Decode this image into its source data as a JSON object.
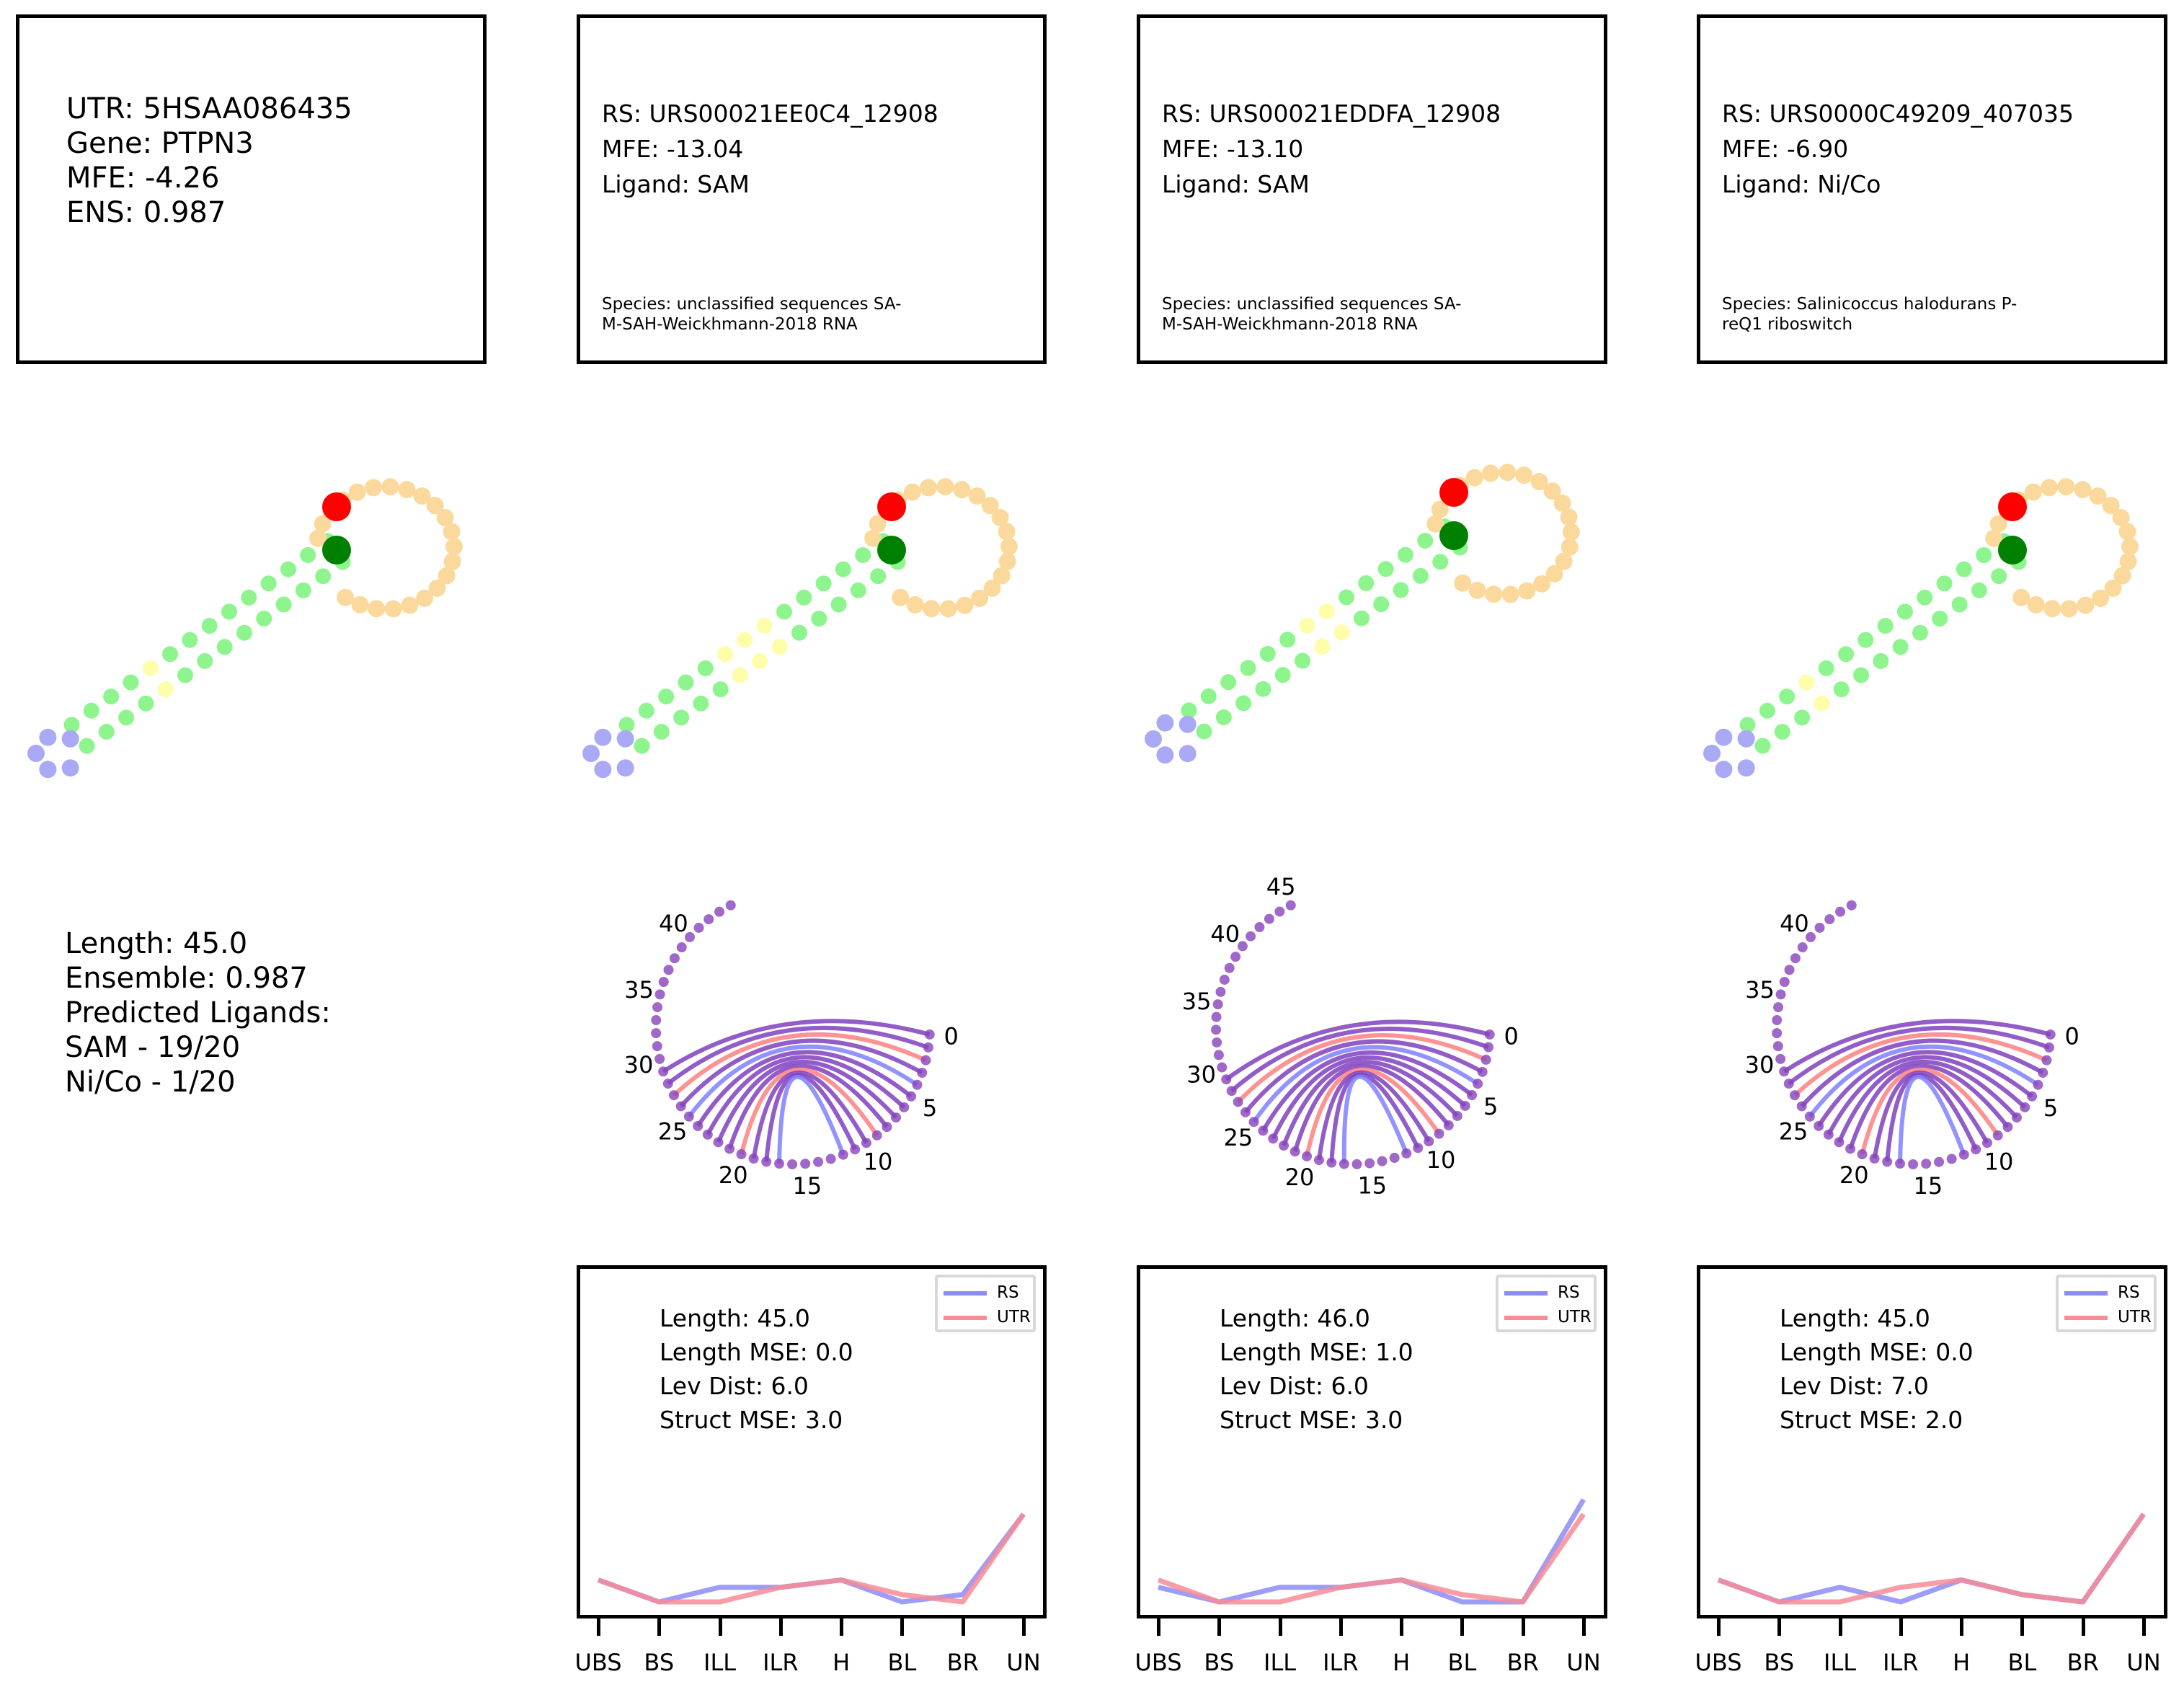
{
  "colors": {
    "stem": "#8ef58e",
    "loop": "#fbd99c",
    "bulge": "#fdfdaa",
    "endloop": "#a9a9f5",
    "start": "#ff0000",
    "end": "#008000",
    "arc_both": "#7f3fbf",
    "arc_rs": "#8080ff",
    "arc_utr": "#ff7f7f",
    "ring": "#8844bb",
    "rs_line": "#8c8cf7",
    "utr_line": "#f78c96"
  },
  "utr_card": {
    "line1": "UTR: 5HSAA086435",
    "line2": "Gene: PTPN3",
    "line3": "MFE: -4.26",
    "line4": "ENS: 0.987"
  },
  "rs_cards": [
    {
      "rs": "RS: URS00021EE0C4_12908",
      "mfe": "MFE: -13.04",
      "ligand": "Ligand: SAM",
      "species1": "Species: unclassified sequences SA-",
      "species2": "M-SAH-Weickhmann-2018 RNA"
    },
    {
      "rs": "RS: URS00021EDDFA_12908",
      "mfe": "MFE: -13.10",
      "ligand": "Ligand: SAM",
      "species1": "Species: unclassified sequences SA-",
      "species2": "M-SAH-Weickhmann-2018 RNA"
    },
    {
      "rs": "RS: URS0000C49209_407035",
      "mfe": "MFE: -6.90",
      "ligand": "Ligand: Ni/Co",
      "species1": "Species: Salinicoccus halodurans P-",
      "species2": "reQ1 riboswitch"
    }
  ],
  "summary": {
    "line1": "Length: 45.0",
    "line2": "Ensemble: 0.987",
    "line3": "Predicted Ligands:",
    "line4": "SAM - 19/20",
    "line5": "Ni/Co - 1/20"
  },
  "circle_plots": [
    {
      "labels": [
        "0",
        "5",
        "10",
        "15",
        "20",
        "25",
        "30",
        "35",
        "40"
      ],
      "n": 45
    },
    {
      "labels": [
        "0",
        "5",
        "10",
        "15",
        "20",
        "25",
        "30",
        "35",
        "40",
        "45"
      ],
      "n": 46
    },
    {
      "labels": [
        "0",
        "5",
        "10",
        "15",
        "20",
        "25",
        "30",
        "35",
        "40"
      ],
      "n": 45
    }
  ],
  "chart_data": [
    {
      "type": "line",
      "categories": [
        "UBS",
        "BS",
        "ILL",
        "ILR",
        "H",
        "BL",
        "BR",
        "UN"
      ],
      "series": [
        {
          "name": "RS",
          "values": [
            3,
            0,
            2,
            2,
            3,
            0,
            1,
            12
          ]
        },
        {
          "name": "UTR",
          "values": [
            3,
            0,
            0,
            2,
            3,
            1,
            0,
            12
          ]
        }
      ],
      "legend_position": "top-right",
      "stats": {
        "length": "Length: 45.0",
        "length_mse": "Length MSE: 0.0",
        "lev": "Lev Dist: 6.0",
        "struct": "Struct MSE: 3.0"
      }
    },
    {
      "type": "line",
      "categories": [
        "UBS",
        "BS",
        "ILL",
        "ILR",
        "H",
        "BL",
        "BR",
        "UN"
      ],
      "series": [
        {
          "name": "RS",
          "values": [
            2,
            0,
            2,
            2,
            3,
            0,
            0,
            14
          ]
        },
        {
          "name": "UTR",
          "values": [
            3,
            0,
            0,
            2,
            3,
            1,
            0,
            12
          ]
        }
      ],
      "legend_position": "top-right",
      "stats": {
        "length": "Length: 46.0",
        "length_mse": "Length MSE: 1.0",
        "lev": "Lev Dist: 6.0",
        "struct": "Struct MSE: 3.0"
      }
    },
    {
      "type": "line",
      "categories": [
        "UBS",
        "BS",
        "ILL",
        "ILR",
        "H",
        "BL",
        "BR",
        "UN"
      ],
      "series": [
        {
          "name": "RS",
          "values": [
            3,
            0,
            2,
            0,
            3,
            1,
            0,
            12
          ]
        },
        {
          "name": "UTR",
          "values": [
            3,
            0,
            0,
            2,
            3,
            1,
            0,
            12
          ]
        }
      ],
      "legend_position": "top-right",
      "stats": {
        "length": "Length: 45.0",
        "length_mse": "Length MSE: 0.0",
        "lev": "Lev Dist: 7.0",
        "struct": "Struct MSE: 2.0"
      }
    }
  ]
}
